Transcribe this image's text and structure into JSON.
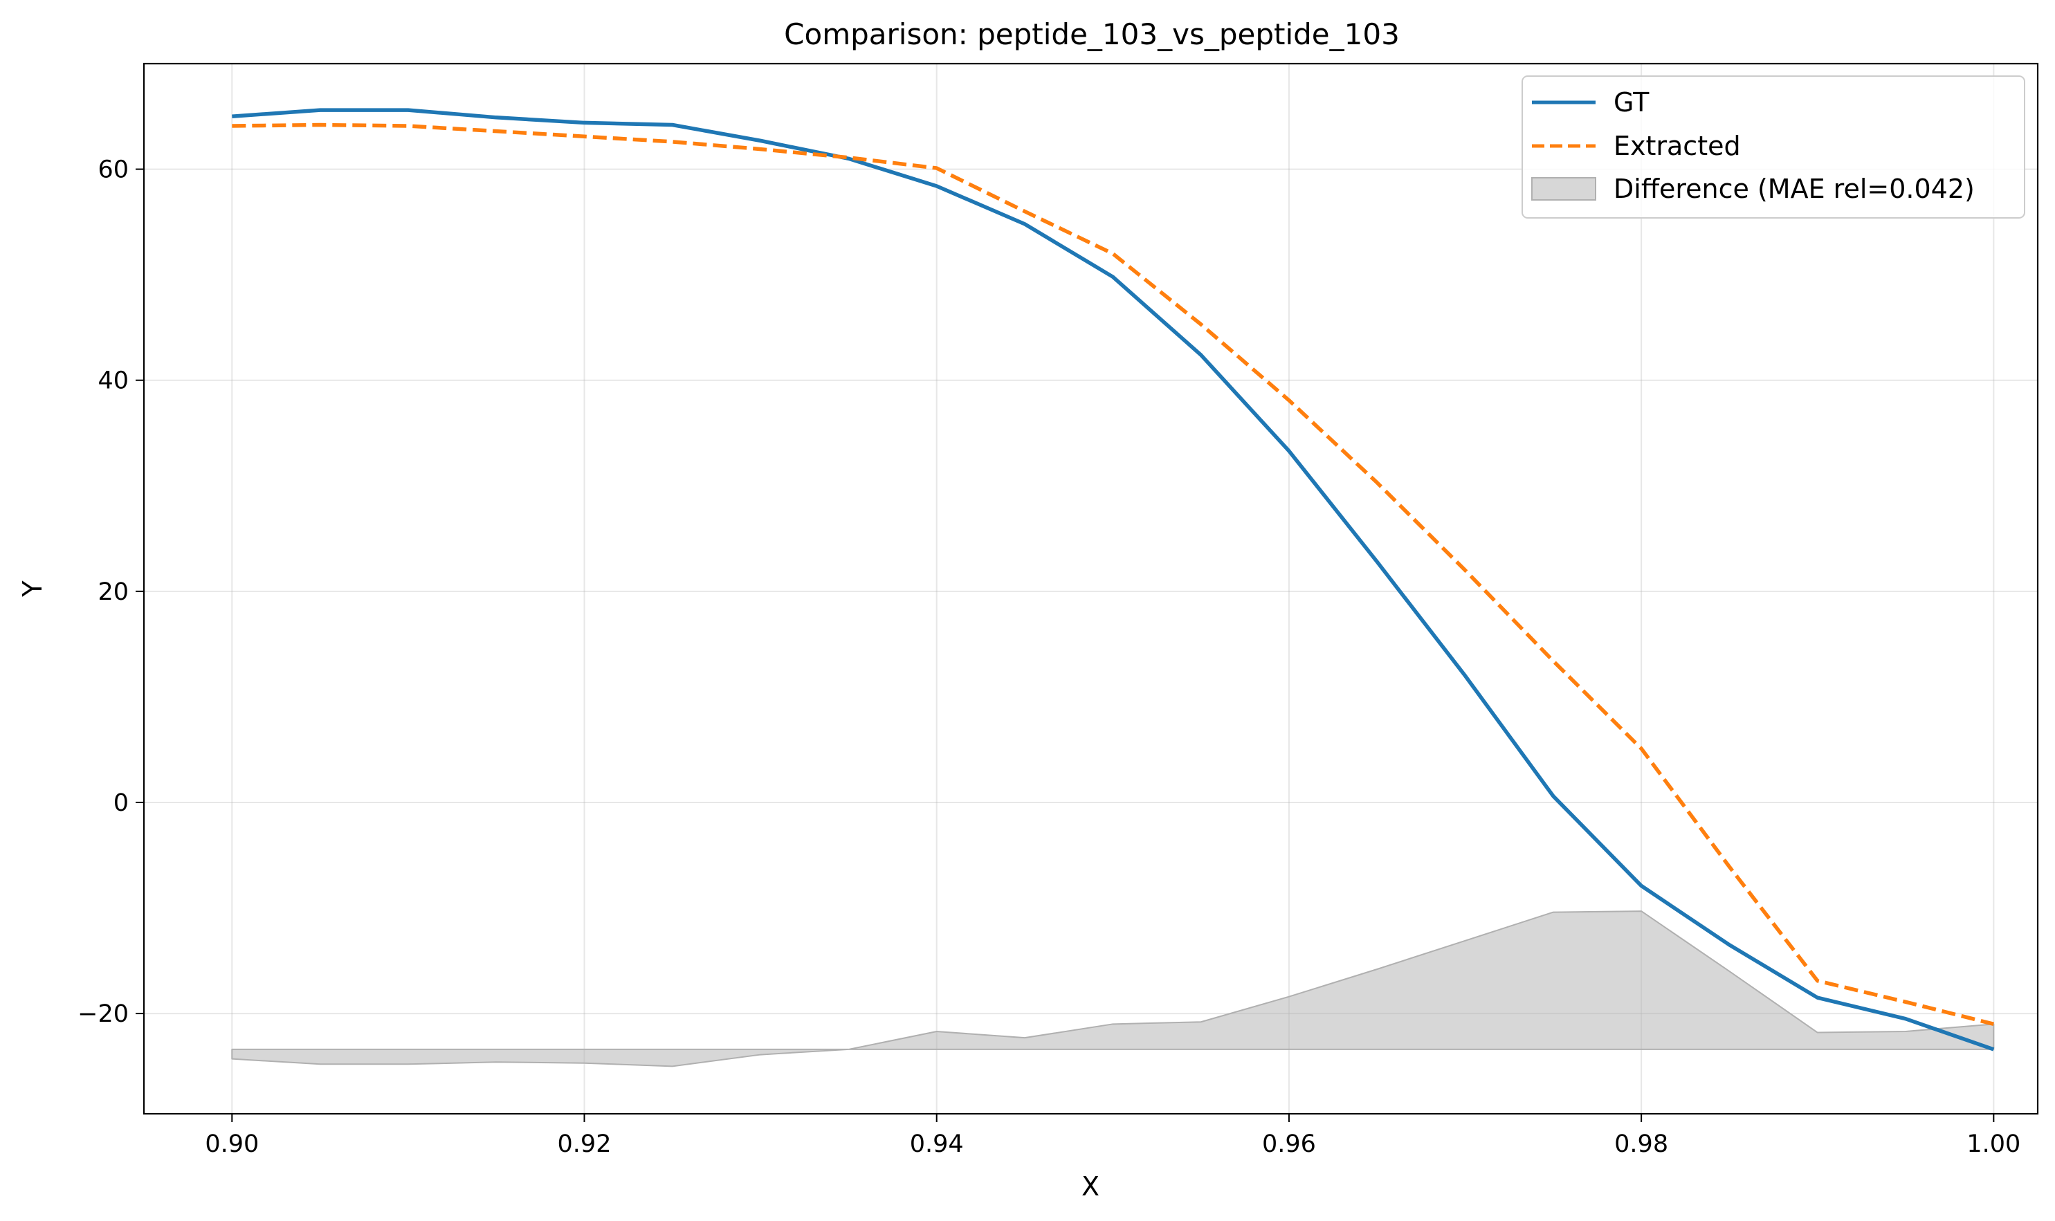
{
  "chart_data": {
    "type": "line",
    "title": "Comparison: peptide_103_vs_peptide_103",
    "xlabel": "X",
    "ylabel": "Y",
    "xlim": [
      0.895,
      1.0025
    ],
    "ylim": [
      -29.5,
      70
    ],
    "xticks": [
      0.9,
      0.92,
      0.94,
      0.96,
      0.98,
      1.0
    ],
    "xtick_labels": [
      "0.90",
      "0.92",
      "0.94",
      "0.96",
      "0.98",
      "1.00"
    ],
    "yticks": [
      -20,
      0,
      20,
      40,
      60
    ],
    "ytick_labels": [
      "−20",
      "0",
      "20",
      "40",
      "60"
    ],
    "grid": true,
    "legend_position": "top-right",
    "x": [
      0.9,
      0.905,
      0.91,
      0.915,
      0.92,
      0.925,
      0.93,
      0.935,
      0.94,
      0.945,
      0.95,
      0.955,
      0.96,
      0.965,
      0.97,
      0.975,
      0.98,
      0.985,
      0.99,
      0.995,
      1.0
    ],
    "series": [
      {
        "name": "GT",
        "color": "#1f77b4",
        "style": "solid",
        "values": [
          65.0,
          65.6,
          65.6,
          64.9,
          64.4,
          64.2,
          62.7,
          61.0,
          58.4,
          54.8,
          49.8,
          42.4,
          33.3,
          22.8,
          12.0,
          0.6,
          -7.9,
          -13.5,
          -18.5,
          -20.5,
          -23.4
        ]
      },
      {
        "name": "Extracted",
        "color": "#ff7f0e",
        "style": "dashed",
        "values": [
          64.1,
          64.2,
          64.1,
          63.6,
          63.1,
          62.6,
          61.9,
          61.1,
          60.1,
          56.0,
          52.0,
          45.3,
          38.1,
          30.3,
          22.0,
          13.4,
          5.1,
          -6.1,
          -16.9,
          -18.9,
          -21.0
        ]
      }
    ],
    "difference": {
      "name": "Difference (MAE rel=0.042)",
      "color": "#b0b0b0",
      "baseline": -23.4,
      "values": [
        -24.3,
        -24.8,
        -24.8,
        -24.6,
        -24.7,
        -25.0,
        -23.9,
        -23.4,
        -21.7,
        -22.3,
        -21.0,
        -20.8,
        -18.4,
        -15.8,
        -13.1,
        -10.4,
        -10.3,
        -16.0,
        -21.8,
        -21.7,
        -21.0
      ]
    }
  }
}
